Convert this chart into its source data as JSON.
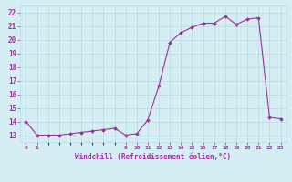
{
  "x": [
    0,
    1,
    2,
    3,
    4,
    5,
    6,
    7,
    8,
    9,
    10,
    11,
    12,
    13,
    14,
    15,
    16,
    17,
    18,
    19,
    20,
    21,
    22,
    23
  ],
  "y": [
    14,
    13,
    13,
    13,
    13.1,
    13.2,
    13.3,
    13.4,
    13.5,
    13,
    13.1,
    14.1,
    16.6,
    19.8,
    20.5,
    20.9,
    21.2,
    21.2,
    21.7,
    21.1,
    21.5,
    21.6,
    14.3,
    14.2
  ],
  "line_color": "#993399",
  "marker_color": "#993399",
  "bg_color": "#d4eef4",
  "grid_color": "#b8d8e0",
  "text_color": "#993399",
  "xlabel": "Windchill (Refroidissement éolien,°C)",
  "xlim": [
    -0.5,
    23.5
  ],
  "ylim": [
    12.5,
    22.5
  ],
  "yticks": [
    13,
    14,
    15,
    16,
    17,
    18,
    19,
    20,
    21,
    22
  ],
  "xticks": [
    0,
    1,
    9,
    10,
    11,
    12,
    13,
    14,
    15,
    16,
    17,
    18,
    19,
    20,
    21,
    22,
    23
  ],
  "xtick_labels": [
    "0",
    "1",
    "9",
    "10",
    "11",
    "12",
    "13",
    "14",
    "15",
    "16",
    "17",
    "18",
    "19",
    "20",
    "21",
    "22",
    "23"
  ]
}
